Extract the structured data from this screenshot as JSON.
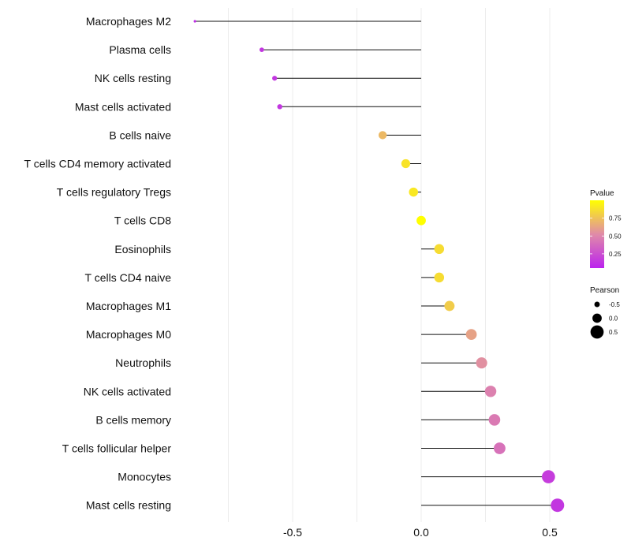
{
  "chart_data": {
    "type": "lollipop",
    "xlim": [
      -1.0,
      0.6
    ],
    "x_ticks": [
      -0.5,
      0.0,
      0.5
    ],
    "x_tick_labels": [
      "-0.5",
      "0.0",
      "0.5"
    ],
    "grid": true,
    "categories": [
      "Macrophages M2",
      "Plasma cells",
      "NK cells resting",
      "Mast cells activated",
      "B cells naive",
      "T cells CD4 memory activated",
      "T cells regulatory  Tregs",
      "T cells CD8",
      "Eosinophils",
      "T cells CD4 naive",
      "Macrophages M1",
      "Macrophages M0",
      "Neutrophils",
      "NK cells activated",
      "B cells memory",
      "T cells follicular helper",
      "Monocytes",
      "Mast cells resting"
    ],
    "pearson": [
      -0.88,
      -0.62,
      -0.57,
      -0.55,
      -0.15,
      -0.06,
      -0.03,
      0.0,
      0.07,
      0.07,
      0.11,
      0.195,
      0.235,
      0.27,
      0.285,
      0.305,
      0.495,
      0.53
    ],
    "pvalue": [
      0.05,
      0.1,
      0.1,
      0.1,
      0.7,
      0.88,
      0.9,
      1.0,
      0.85,
      0.85,
      0.78,
      0.6,
      0.52,
      0.45,
      0.42,
      0.38,
      0.13,
      0.1
    ],
    "legend_pvalue": {
      "title": "Pvalue",
      "ticks": [
        "0.75",
        "0.50",
        "0.25"
      ],
      "colors": {
        "high": "#ffff00",
        "mid": "#e08ba8",
        "low": "#bb22ee"
      }
    },
    "legend_pearson": {
      "title": "Pearson",
      "ticks": [
        "-0.5",
        "0.0",
        "0.5"
      ]
    }
  }
}
